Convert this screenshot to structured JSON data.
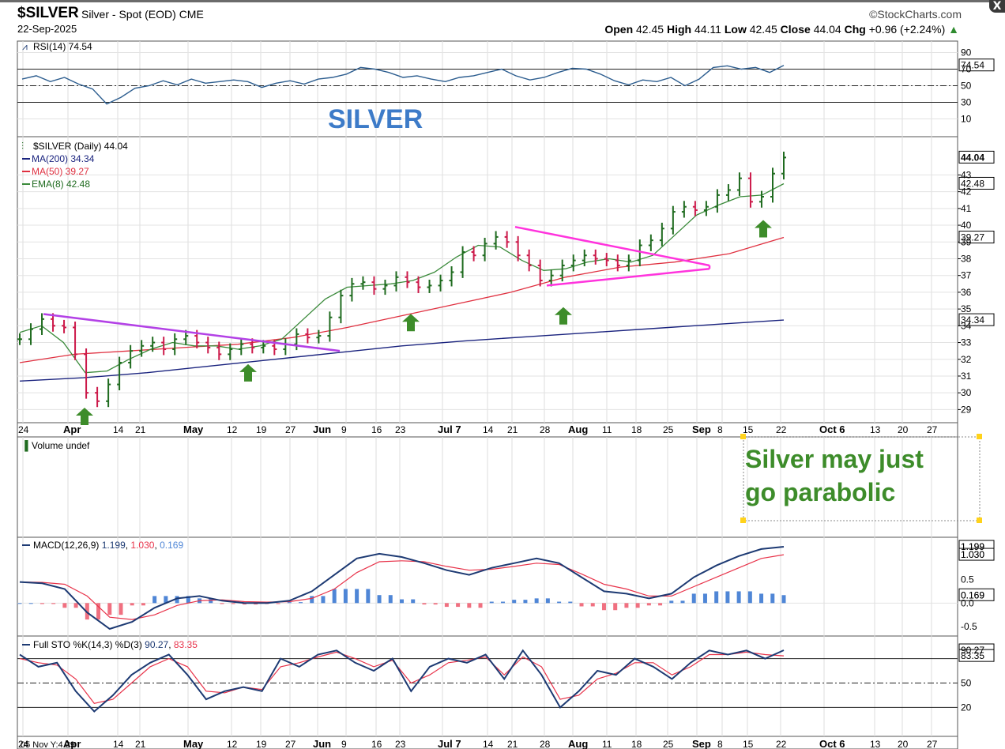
{
  "header": {
    "symbol": "$SILVER",
    "description": "Silver - Spot (EOD) CME",
    "date": "22-Sep-2025",
    "brand": "©StockCharts.com",
    "open_label": "Open",
    "open": "42.45",
    "high_label": "High",
    "high": "44.11",
    "low_label": "Low",
    "low": "42.45",
    "close_label": "Close",
    "close": "44.04",
    "chg_label": "Chg",
    "chg": "+0.96 (+2.24%)",
    "close_button": "X"
  },
  "annotations": {
    "silver_title": "SILVER",
    "note_line1": "Silver may just",
    "note_line2": "go parabolic"
  },
  "colors": {
    "up": "#1f6b1f",
    "down": "#cc1a4a",
    "ma200": "#1a237e",
    "ma50": "#e03040",
    "ema8": "#3a8a3a",
    "trendline": "#b341e6",
    "triangle": "#ff33dd",
    "arrow": "#3d8c2a",
    "rsi": "#2c5d8f",
    "macd": "#1d3a73",
    "signal": "#e8334a",
    "hist_pos": "#4f86d6",
    "hist_neg": "#f07080",
    "sto_k": "#1d3a73",
    "sto_d": "#e8334a",
    "note": "#3d8c2a",
    "title": "#3d7bc8"
  },
  "chart_data": [
    {
      "type": "line",
      "panel": "RSI",
      "legend": "RSI(14) 74.54",
      "ylim": [
        0,
        100
      ],
      "yticks": [
        90,
        70,
        50,
        30,
        10
      ],
      "reference_lines": [
        70,
        50,
        30
      ],
      "last_value_label": "74.54",
      "series": [
        {
          "name": "RSI(14)",
          "values": [
            58,
            62,
            55,
            60,
            52,
            46,
            28,
            36,
            47,
            50,
            56,
            51,
            58,
            53,
            55,
            57,
            55,
            48,
            53,
            56,
            52,
            58,
            60,
            64,
            72,
            70,
            66,
            60,
            62,
            58,
            55,
            60,
            62,
            66,
            70,
            62,
            57,
            60,
            66,
            71,
            70,
            64,
            56,
            51,
            57,
            55,
            60,
            50,
            58,
            72,
            74,
            70,
            72,
            66,
            74.54
          ]
        }
      ]
    },
    {
      "type": "candlestick",
      "panel": "Price",
      "legend": "$SILVER (Daily) 44.04",
      "ylim": [
        28.5,
        45
      ],
      "yticks": [
        29,
        30,
        31,
        32,
        33,
        34,
        35,
        36,
        37,
        38,
        39,
        40,
        41,
        42,
        43
      ],
      "x_tick_labels": [
        "24",
        "Apr",
        "14",
        "21",
        "May",
        "12",
        "19",
        "27",
        "Jun",
        "9",
        "16",
        "23",
        "Jul 7",
        "14",
        "21",
        "28",
        "Aug",
        "11",
        "18",
        "25",
        "Sep",
        "8",
        "15",
        "22",
        "Oct 6",
        "13",
        "20",
        "27"
      ],
      "price_labels": [
        "44.04",
        "42.48",
        "39.27",
        "34.34"
      ],
      "series": [
        {
          "name": "$SILVER",
          "values": [
            33.2,
            33.8,
            34.4,
            34.0,
            33.9,
            32.3,
            30.0,
            29.5,
            30.5,
            31.8,
            32.5,
            32.8,
            33.0,
            32.6,
            33.2,
            33.4,
            33.0,
            32.7,
            32.3,
            32.6,
            32.9,
            32.7,
            32.8,
            32.6,
            32.9,
            33.5,
            33.3,
            33.4,
            34.5,
            35.8,
            36.5,
            36.6,
            36.2,
            36.4,
            36.9,
            36.6,
            36.3,
            36.4,
            36.7,
            37.2,
            38.4,
            38.2,
            38.9,
            39.3,
            39.0,
            38.2,
            37.6,
            36.7,
            37.0,
            37.6,
            37.9,
            38.2,
            38.0,
            37.9,
            37.6,
            37.9,
            38.8,
            39.1,
            39.8,
            40.8,
            41.1,
            40.9,
            41.1,
            41.8,
            42.1,
            42.8,
            41.4,
            41.7,
            43.08,
            44.04
          ]
        },
        {
          "name": "MA(200)",
          "legend": "MA(200) 34.34",
          "values": [
            30.7,
            30.9,
            31.2,
            31.6,
            32.0,
            32.4,
            32.8,
            33.1,
            33.35,
            33.6,
            33.85,
            34.1,
            34.34
          ]
        },
        {
          "name": "MA(50)",
          "legend": "MA(50) 39.27",
          "values": [
            31.8,
            32.3,
            32.5,
            32.7,
            32.9,
            33.3,
            33.9,
            34.6,
            35.3,
            36.0,
            36.9,
            37.5,
            37.8,
            38.3,
            39.27
          ]
        },
        {
          "name": "EMA(8)",
          "legend": "EMA(8) 42.48",
          "values": [
            33.6,
            34.0,
            33.0,
            31.2,
            31.3,
            32.0,
            32.6,
            33.0,
            32.8,
            32.8,
            32.6,
            32.8,
            33.2,
            34.4,
            35.6,
            36.3,
            36.4,
            36.5,
            36.7,
            37.2,
            38.1,
            38.8,
            38.7,
            37.9,
            37.3,
            37.4,
            37.8,
            38.0,
            37.8,
            38.2,
            39.4,
            40.6,
            41.2,
            41.7,
            41.8,
            42.48
          ]
        }
      ]
    },
    {
      "type": "bar",
      "panel": "Volume",
      "legend": "Volume undef",
      "series": []
    },
    {
      "type": "line",
      "panel": "MACD",
      "legend_prefix": "MACD(12,26,9)",
      "legend_values": [
        "1.199",
        "1.030",
        "0.169"
      ],
      "ylim": [
        -0.6,
        1.3
      ],
      "yticks": [
        "1.199",
        "1.030",
        "0.5",
        "0.169",
        "0.0",
        "-0.5"
      ],
      "series": [
        {
          "name": "MACD",
          "values": [
            0.45,
            0.42,
            0.3,
            -0.2,
            -0.55,
            -0.4,
            -0.1,
            0.1,
            0.15,
            0.05,
            0.0,
            0.0,
            0.05,
            0.25,
            0.6,
            0.95,
            1.05,
            0.98,
            0.85,
            0.7,
            0.6,
            0.75,
            0.85,
            0.95,
            0.85,
            0.55,
            0.25,
            0.2,
            0.1,
            0.2,
            0.55,
            0.8,
            1.0,
            1.15,
            1.199
          ]
        },
        {
          "name": "Signal",
          "values": [
            0.45,
            0.44,
            0.4,
            0.15,
            -0.3,
            -0.35,
            -0.25,
            -0.05,
            0.05,
            0.07,
            0.03,
            0.02,
            0.03,
            0.1,
            0.3,
            0.65,
            0.88,
            0.9,
            0.88,
            0.78,
            0.7,
            0.72,
            0.78,
            0.85,
            0.82,
            0.62,
            0.4,
            0.3,
            0.15,
            0.15,
            0.35,
            0.55,
            0.75,
            0.95,
            1.03
          ]
        },
        {
          "name": "Histogram",
          "values": [
            0.0,
            -0.02,
            -0.1,
            -0.35,
            -0.25,
            -0.05,
            0.15,
            0.15,
            0.1,
            -0.02,
            -0.03,
            -0.02,
            0.02,
            0.15,
            0.3,
            0.3,
            0.17,
            0.08,
            -0.03,
            -0.08,
            -0.1,
            0.03,
            0.07,
            0.1,
            0.03,
            -0.07,
            -0.15,
            -0.1,
            -0.05,
            0.05,
            0.2,
            0.25,
            0.25,
            0.2,
            0.169
          ]
        }
      ]
    },
    {
      "type": "line",
      "panel": "Stochastic",
      "legend_prefix": "Full STO %K(14,3) %D(3)",
      "legend_values": [
        "90.27",
        "83.35"
      ],
      "ylim": [
        0,
        100
      ],
      "yticks": [
        "90.27",
        "83.35",
        "50",
        "20"
      ],
      "reference_lines": [
        80,
        50,
        20
      ],
      "series": [
        {
          "name": "%K",
          "values": [
            85,
            70,
            75,
            40,
            15,
            35,
            60,
            75,
            85,
            60,
            30,
            40,
            45,
            40,
            80,
            70,
            85,
            90,
            75,
            65,
            80,
            40,
            70,
            80,
            75,
            85,
            55,
            90,
            60,
            20,
            40,
            65,
            60,
            80,
            70,
            55,
            75,
            90,
            85,
            90,
            80,
            90.27
          ]
        },
        {
          "name": "%D",
          "values": [
            80,
            75,
            72,
            55,
            25,
            30,
            50,
            70,
            80,
            70,
            40,
            38,
            45,
            42,
            70,
            75,
            82,
            88,
            80,
            70,
            78,
            50,
            60,
            75,
            78,
            82,
            60,
            82,
            70,
            30,
            35,
            55,
            62,
            75,
            75,
            60,
            70,
            85,
            85,
            88,
            85,
            83.35
          ]
        }
      ]
    }
  ],
  "footer": {
    "axis_note": "05 Nov Y:4.29"
  }
}
